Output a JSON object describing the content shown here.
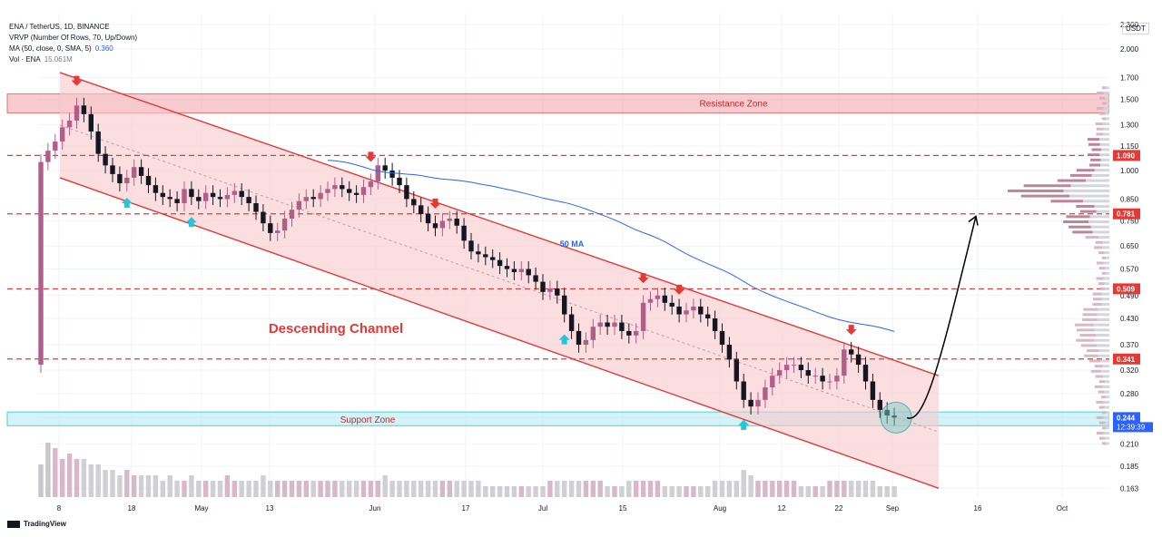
{
  "header": {
    "line1": "ENA / TetherUS, 1D, BINANCE",
    "line2": "VRVP (Number Of Rows, 70, Up/Down)",
    "line3_label": "MA (50, close, 0, SMA, 5)",
    "line3_value": "0.360",
    "line4_label": "Vol · ENA",
    "line4_value": "15.061M"
  },
  "currency": "USDT",
  "branding": "TradingView",
  "chart_data": {
    "type": "candlestick",
    "y_scale": "log",
    "ylim": [
      0.155,
      2.45
    ],
    "y_ticks": [
      "2.300",
      "2.000",
      "1.700",
      "1.500",
      "1.300",
      "1.150",
      "1.000",
      "0.850",
      "0.750",
      "0.650",
      "0.570",
      "0.490",
      "0.430",
      "0.370",
      "0.320",
      "0.280",
      "0.244",
      "0.210",
      "0.185",
      "0.163"
    ],
    "x_ticks": [
      "8",
      "18",
      "May",
      "13",
      "Jun",
      "17",
      "Jul",
      "15",
      "Aug",
      "12",
      "22",
      "Sep",
      "16",
      "Oct"
    ],
    "price_labels": [
      {
        "value": "1.090",
        "color": "#e53935"
      },
      {
        "value": "0.781",
        "color": "#e53935"
      },
      {
        "value": "0.509",
        "color": "#e53935"
      },
      {
        "value": "0.341",
        "color": "#e53935"
      },
      {
        "value": "0.244",
        "color": "#2962ff"
      }
    ],
    "countdown": "12:39:39",
    "horizontal_levels": [
      1.09,
      0.781,
      0.509,
      0.341
    ],
    "zones": [
      {
        "name": "Resistance Zone",
        "from": 1.39,
        "to": 1.55,
        "color": "#f0a0a8"
      },
      {
        "name": "Support Zone",
        "from": 0.233,
        "to": 0.252,
        "color": "#b2e8ee"
      }
    ],
    "annotations": {
      "channel_label": "Descending Channel",
      "ma_label": "50 MA",
      "resistance_label": "Resistance Zone",
      "support_label": "Support Zone"
    },
    "colors": {
      "up": "#b05f8b",
      "down": "#131722",
      "channel": "#e53935",
      "ma": "#2962ff",
      "arrow_down": "#e53935",
      "arrow_up": "#26c6da"
    },
    "candle_close": [
      1.05,
      1.12,
      1.18,
      1.28,
      1.33,
      1.45,
      1.38,
      1.25,
      1.1,
      1.03,
      0.98,
      0.93,
      0.96,
      1.02,
      0.97,
      0.92,
      0.88,
      0.86,
      0.85,
      0.83,
      0.9,
      0.86,
      0.84,
      0.88,
      0.86,
      0.85,
      0.87,
      0.89,
      0.86,
      0.83,
      0.79,
      0.74,
      0.7,
      0.71,
      0.76,
      0.8,
      0.84,
      0.86,
      0.85,
      0.88,
      0.9,
      0.92,
      0.9,
      0.88,
      0.87,
      0.91,
      0.94,
      1.03,
      1.0,
      0.96,
      0.92,
      0.85,
      0.82,
      0.78,
      0.74,
      0.72,
      0.75,
      0.76,
      0.73,
      0.67,
      0.63,
      0.62,
      0.61,
      0.6,
      0.58,
      0.57,
      0.56,
      0.57,
      0.55,
      0.53,
      0.5,
      0.51,
      0.49,
      0.44,
      0.4,
      0.37,
      0.38,
      0.41,
      0.42,
      0.41,
      0.42,
      0.4,
      0.39,
      0.4,
      0.47,
      0.48,
      0.49,
      0.47,
      0.46,
      0.44,
      0.45,
      0.46,
      0.44,
      0.43,
      0.4,
      0.37,
      0.34,
      0.3,
      0.27,
      0.26,
      0.27,
      0.29,
      0.31,
      0.32,
      0.33,
      0.33,
      0.32,
      0.31,
      0.31,
      0.3,
      0.3,
      0.31,
      0.36,
      0.35,
      0.33,
      0.3,
      0.27,
      0.255,
      0.247,
      0.244
    ],
    "arrows_down_at_candle": [
      5,
      46,
      55,
      84,
      89,
      113
    ],
    "arrows_up_at_candle": [
      12,
      21,
      73,
      98
    ],
    "volume_relative": [
      0.6,
      1.0,
      0.9,
      0.7,
      0.8,
      0.7,
      0.7,
      0.6,
      0.6,
      0.5,
      0.5,
      0.4,
      0.5,
      0.4,
      0.4,
      0.4,
      0.4,
      0.3,
      0.4,
      0.3,
      0.3,
      0.4,
      0.3,
      0.3,
      0.3,
      0.3,
      0.4,
      0.3,
      0.3,
      0.3,
      0.3,
      0.4,
      0.3,
      0.3,
      0.3,
      0.3,
      0.3,
      0.3,
      0.3,
      0.3,
      0.3,
      0.3,
      0.3,
      0.3,
      0.3,
      0.3,
      0.3,
      0.3,
      0.4,
      0.3,
      0.3,
      0.3,
      0.3,
      0.3,
      0.3,
      0.3,
      0.3,
      0.3,
      0.3,
      0.3,
      0.3,
      0.3,
      0.2,
      0.2,
      0.2,
      0.2,
      0.2,
      0.2,
      0.2,
      0.2,
      0.2,
      0.3,
      0.3,
      0.3,
      0.3,
      0.3,
      0.3,
      0.3,
      0.3,
      0.2,
      0.2,
      0.2,
      0.3,
      0.3,
      0.3,
      0.3,
      0.3,
      0.2,
      0.2,
      0.2,
      0.2,
      0.2,
      0.2,
      0.2,
      0.3,
      0.3,
      0.3,
      0.3,
      0.5,
      0.4,
      0.3,
      0.3,
      0.3,
      0.3,
      0.3,
      0.3,
      0.2,
      0.2,
      0.2,
      0.2,
      0.3,
      0.3,
      0.3,
      0.3,
      0.3,
      0.3,
      0.3,
      0.2,
      0.2,
      0.2
    ]
  }
}
